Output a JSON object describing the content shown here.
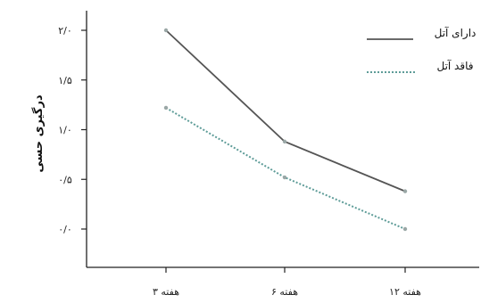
{
  "chart_data": {
    "type": "line",
    "categories": [
      "۳ هفته",
      "۶ هفته",
      "۱۲ هفته"
    ],
    "ylabel": "درگیری حسی",
    "ylim": [
      0,
      2
    ],
    "yticks": [
      0,
      0.5,
      1,
      1.5,
      2
    ],
    "ytick_labels": [
      "۰/۰",
      "۰/۵",
      "۱/۰",
      "۱/۵",
      "۲/۰"
    ],
    "series": [
      {
        "name": "دارای آتل",
        "values": [
          2.0,
          0.88,
          0.38
        ],
        "color": "#555555",
        "style": "solid"
      },
      {
        "name": "فاقد آتل",
        "values": [
          1.22,
          0.52,
          0.0
        ],
        "color": "#5e9c98",
        "style": "dotted"
      }
    ],
    "legend": {
      "placement": "top-right"
    },
    "grid": false
  }
}
